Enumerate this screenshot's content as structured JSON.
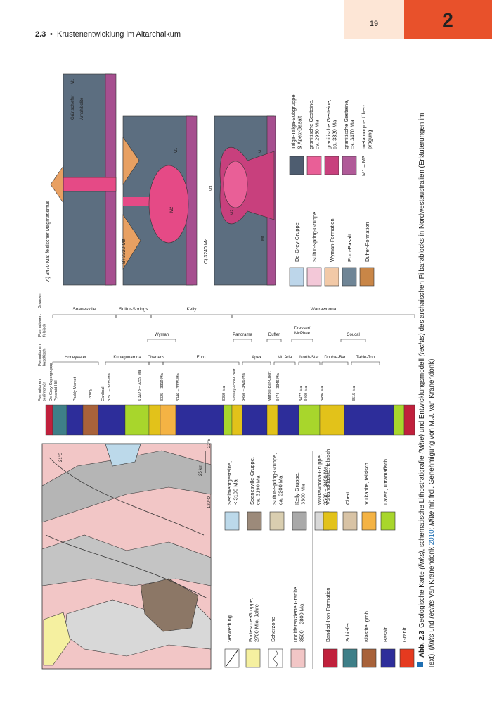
{
  "header": {
    "section": "2.3",
    "separator": "•",
    "title": "Krustenentwicklung im Altarchaikum",
    "page_number": "19",
    "chapter": "2"
  },
  "figure": {
    "map": {
      "labels": [
        "21°S",
        "22°S",
        "120°O",
        "25 km"
      ]
    },
    "map_legend": {
      "items": [
        "Verwerfung",
        [
          "Fortescue-Gruppe,",
          "2700 Mio. Jahre"
        ],
        "Scherzone",
        [
          "undifferenzierte Granite,",
          "3500 – 2800 Ma"
        ],
        [
          "Sedimentgesteine,",
          "< 3100 Ma"
        ],
        [
          "Soanesville-Gruppe,",
          "ca. 3190 Ma"
        ],
        [
          "Sulfur-Spring-Gruppe,",
          "ca. 3200 Ma"
        ],
        [
          "Kelly-Gruppe,",
          "3300 Ma"
        ],
        [
          "Warrawoona-Gruppe,",
          "3500 – 3400 Ma"
        ],
        "Banded-Iron-Formation",
        "Schiefer",
        "Klastite, grob",
        "Basalt",
        "Granit",
        "Vulkanoklastite, felsisch",
        "Chert",
        "Vulkanite, felsisch",
        "Laven, ultramafisch"
      ]
    },
    "stratigraphy": {
      "headers": [
        [
          "Formationen,",
          "sedimentär"
        ],
        [
          "Formationen,",
          "basaltisch"
        ],
        [
          "Formationen,",
          "felsisch"
        ],
        "Gruppen"
      ],
      "groups": [
        "Soanesville",
        "Sulfur-Springs",
        "Kelly",
        "Warrawoona"
      ],
      "felsic": [
        "Wyman",
        "Panorama",
        "Duffer",
        [
          "Dresser/",
          "McPhee"
        ],
        "Coucal"
      ],
      "basaltic": [
        "Honeyeater",
        "Kunagunarrina",
        "Charteris",
        "Euro",
        "Apex",
        "Mt. Ada",
        "North-Star",
        "Double-Bar",
        "Table-Top"
      ],
      "sedimentary": [
        "De-Grey-Supergruppe",
        "Pyramid-Hill",
        "Paddy-Market",
        "Corboy",
        "Cardinal",
        "Strelley-Pool-Chert",
        "Marble-Bar-Chert"
      ],
      "ages": [
        "3251 – 3235 Ma",
        "≤ 3273 – 3259 Ma",
        "3325 – 3319 Ma",
        "3346 – 3335 Ma",
        "3350 Ma",
        "3458 – 3426 Ma",
        "3474 – 3346 Ma",
        "3477 Ma",
        "3460 Ma",
        "3496 Ma",
        "3515 Ma"
      ]
    },
    "models": {
      "panels": [
        "A) 3470 Ma: felsischer Magmatismus",
        "B) 3320 Ma",
        "C) 3240 Ma"
      ],
      "annotations": [
        "M1",
        "Grünschiefer",
        "Amphibolite",
        "M1",
        "M2",
        "M3",
        "M1",
        "M2",
        "M1"
      ],
      "legend": [
        "De-Grey-Gruppe",
        "Sulfur-Spring-Gruppe",
        "Wyman-Formation",
        "Euro-Basalt",
        "Duffer-Formation",
        [
          "Talga-Talga-Subgruppe",
          "& Apex-Basalt"
        ],
        [
          "granitische Gesteine,",
          "ca. 2950 Ma"
        ],
        [
          "granitische Gesteine,",
          "ca. 3320 Ma"
        ],
        [
          "granitische Gesteine,",
          "ca. 3470 Ma"
        ],
        "M1 – M3",
        [
          "metamorphe Über-",
          "prägung"
        ]
      ]
    }
  },
  "caption": {
    "label": "Abb. 2.3",
    "segments": [
      "Geologische Karte ",
      "(links)",
      ", schematische Lithostratigrafie ",
      "(Mitte)",
      " und Entwicklungsmodell ",
      "(rechts)",
      " des archaischen Pilbarablocks in Nordwestaustralien (Erläuterungen im",
      "Text). (",
      "links",
      " und ",
      "rechts",
      " Van Kranendonk ",
      "2010",
      "; ",
      "Mitte",
      " mit frdl. Genehmigung von M.J. van Kranendonk)"
    ]
  }
}
